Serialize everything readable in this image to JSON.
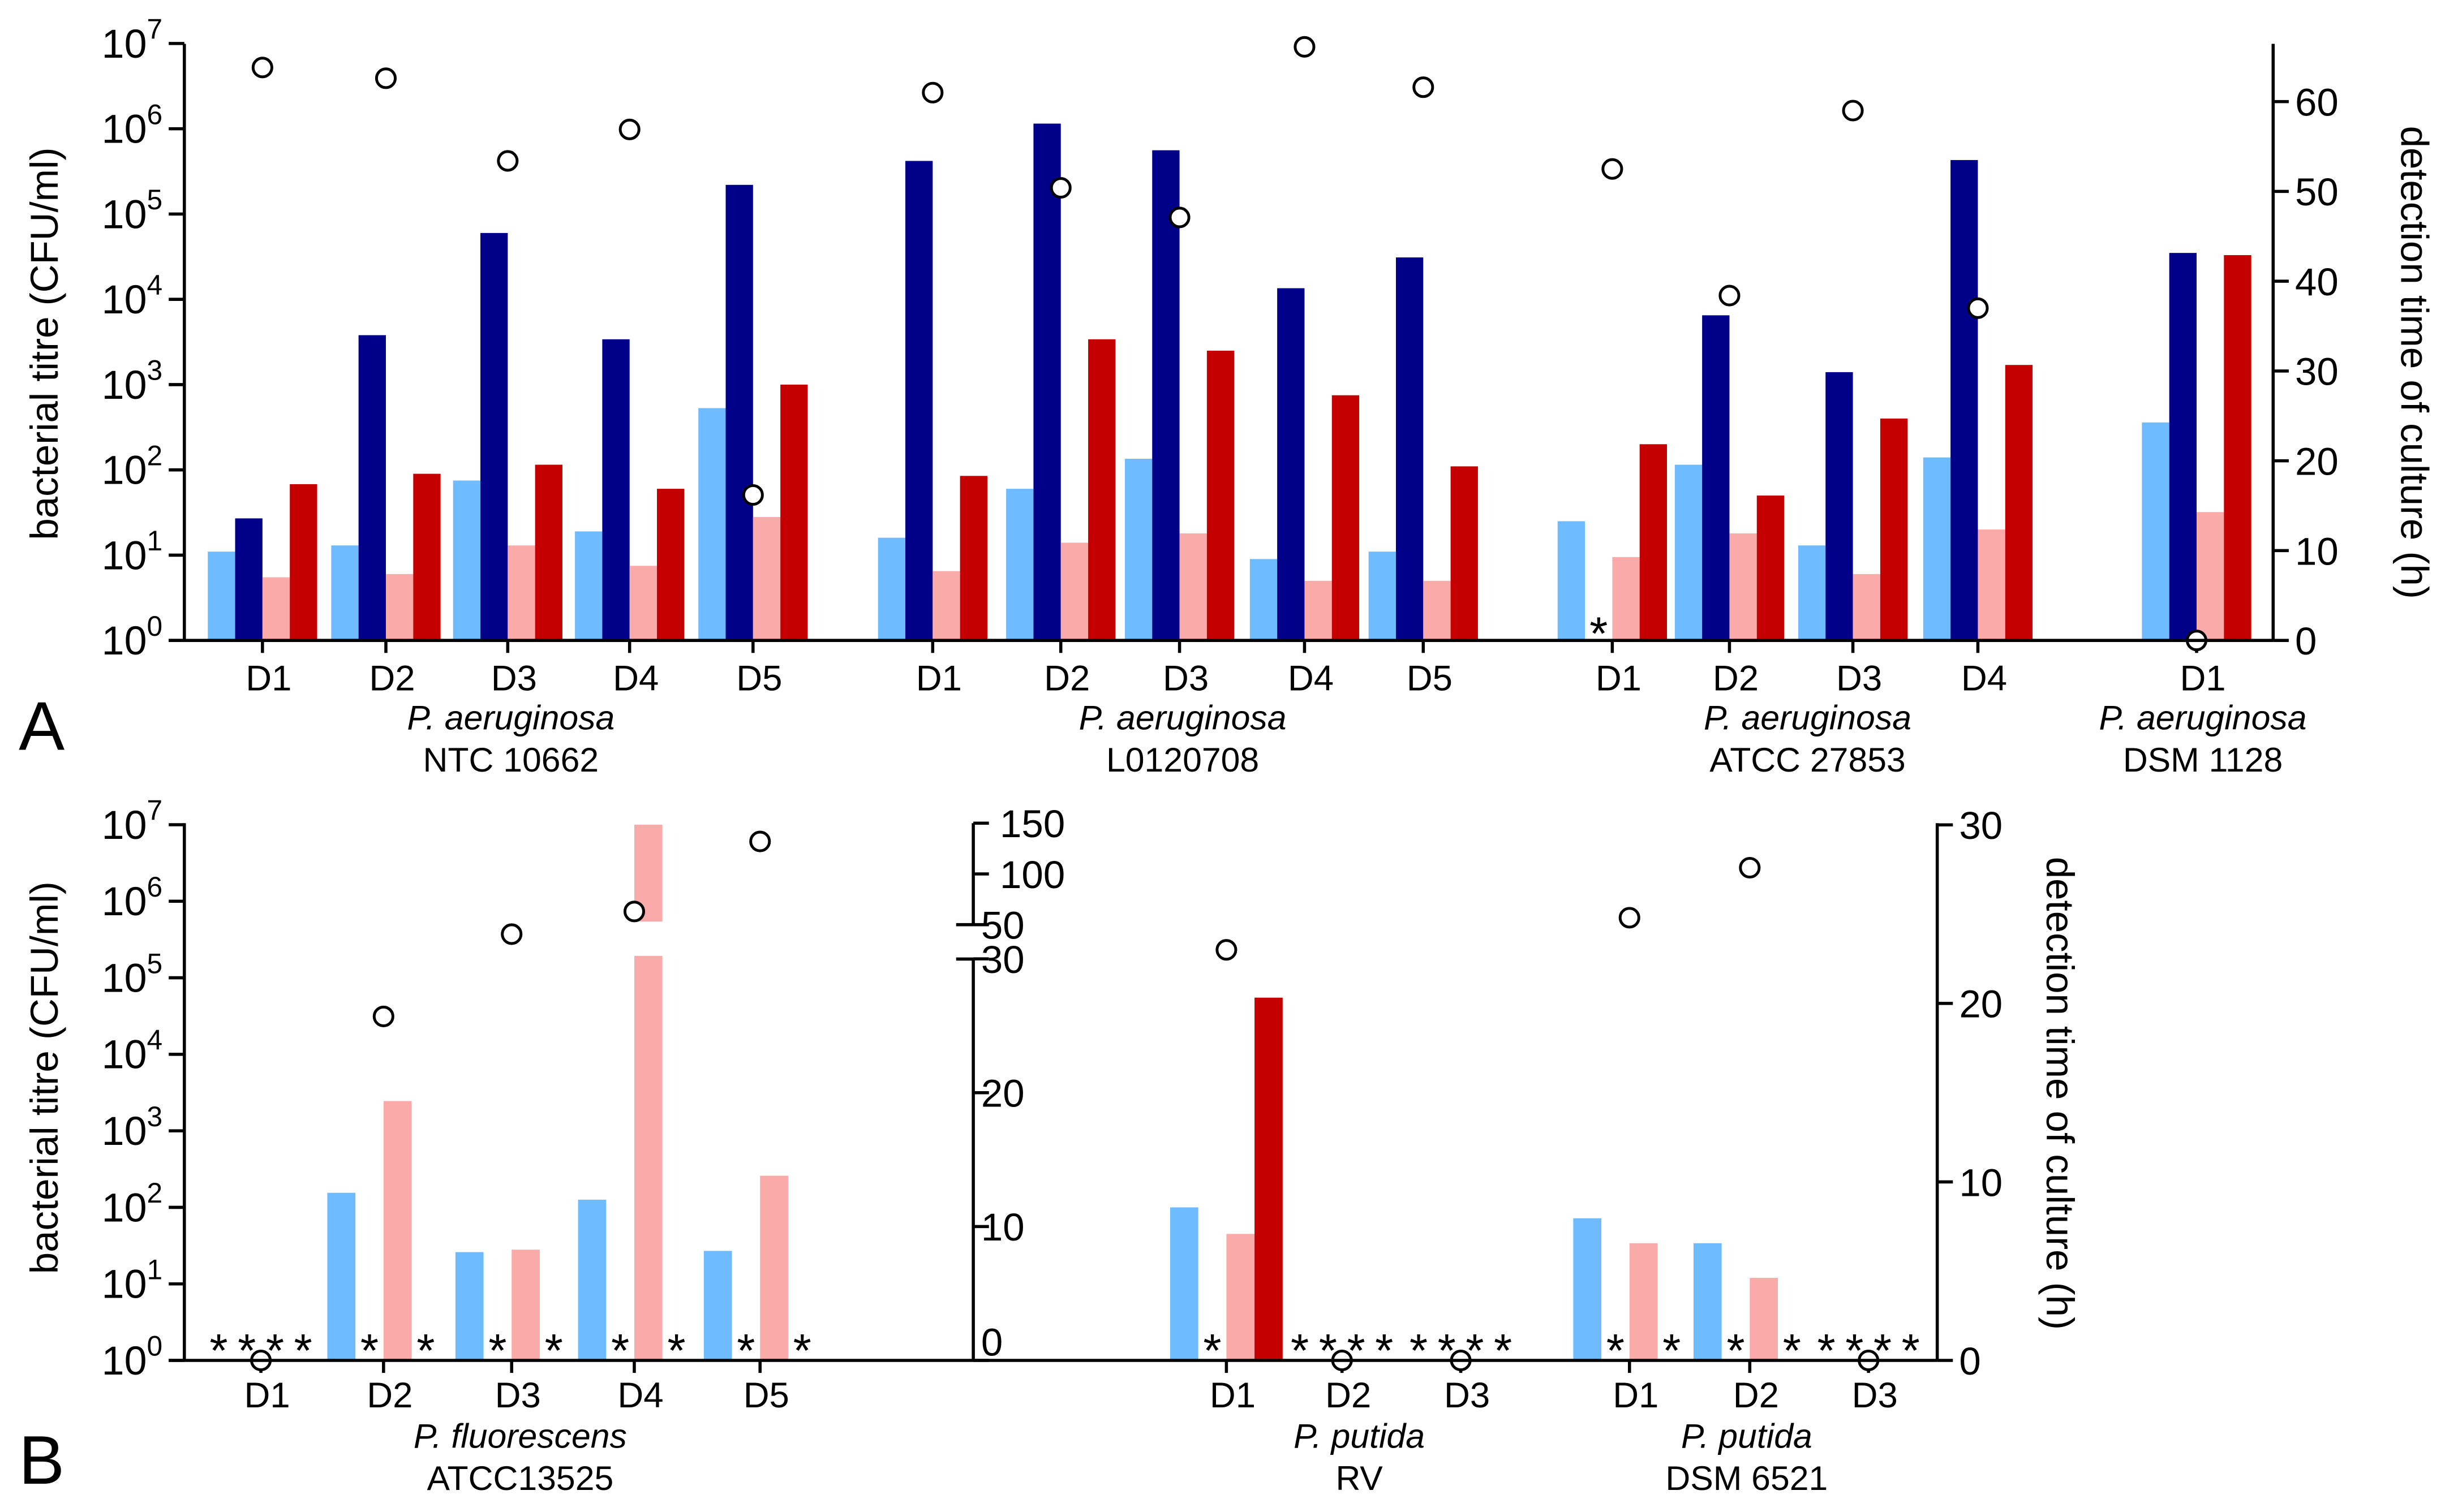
{
  "colors": {
    "light_blue": "#6ebcff",
    "dark_blue": "#000088",
    "pink": "#fbaaaa",
    "red": "#c40000"
  },
  "not_detected_marker": "*",
  "chart_data": [
    {
      "panel": "A",
      "type": "bar",
      "ylabel": "bacterial titre (CFU/ml)",
      "y2label": "detection time of culture (h)",
      "yscale": "log",
      "ylim": [
        1,
        10000000
      ],
      "yticks": [
        "10^0",
        "10^1",
        "10^2",
        "10^3",
        "10^4",
        "10^5",
        "10^6",
        "10^7"
      ],
      "y2lim": [
        0,
        66
      ],
      "y2ticks": [
        0,
        10,
        20,
        30,
        40,
        50,
        60
      ],
      "groups": [
        {
          "species": "P. aeruginosa",
          "strain": "NTC 10662",
          "time_axis": "right",
          "days": [
            {
              "label": "D1",
              "values": [
                11,
                27,
                5.5,
                68
              ],
              "detection_time": 63.8
            },
            {
              "label": "D2",
              "values": [
                13,
                3800,
                6,
                90
              ],
              "detection_time": 62.6
            },
            {
              "label": "D3",
              "values": [
                75,
                60000,
                13,
                115
              ],
              "detection_time": 53.4
            },
            {
              "label": "D4",
              "values": [
                19,
                3400,
                7.5,
                60
              ],
              "detection_time": 56.9
            },
            {
              "label": "D5",
              "values": [
                530,
                220000,
                28,
                1000
              ],
              "detection_time": 16.2
            }
          ]
        },
        {
          "species": "P. aeruginosa",
          "strain": "L0120708",
          "time_axis": "right",
          "days": [
            {
              "label": "D1",
              "values": [
                16,
                420000,
                6.5,
                85
              ],
              "detection_time": 61
            },
            {
              "label": "D2",
              "values": [
                60,
                1150000,
                14,
                3400
              ],
              "detection_time": 50.4
            },
            {
              "label": "D3",
              "values": [
                135,
                560000,
                18,
                2500
              ],
              "detection_time": 47.1
            },
            {
              "label": "D4",
              "values": [
                9,
                13500,
                5,
                750
              ],
              "detection_time": 66.1
            },
            {
              "label": "D5",
              "values": [
                11,
                31000,
                5,
                110
              ],
              "detection_time": 61.6
            }
          ]
        },
        {
          "species": "P. aeruginosa",
          "strain": "ATCC 27853",
          "time_axis": "right",
          "days": [
            {
              "label": "D1",
              "values": [
                25,
                null,
                9.5,
                200
              ],
              "detection_time": 52.5
            },
            {
              "label": "D2",
              "values": [
                115,
                6500,
                18,
                50
              ],
              "detection_time": 38.4
            },
            {
              "label": "D3",
              "values": [
                13,
                1400,
                6,
                400
              ],
              "detection_time": 59
            },
            {
              "label": "D4",
              "values": [
                140,
                430000,
                20,
                1700
              ],
              "detection_time": 37
            }
          ]
        },
        {
          "species": "P. aeruginosa",
          "strain": "DSM 1128",
          "time_axis": "right",
          "days": [
            {
              "label": "D1",
              "values": [
                360,
                35000,
                32,
                33000
              ],
              "detection_time": 0
            }
          ]
        }
      ]
    },
    {
      "panel": "B",
      "type": "bar",
      "ylabel": "bacterial titre (CFU/ml)",
      "y2label": "detection time of culture (h)",
      "yscale": "log",
      "ylim": [
        1,
        10000000
      ],
      "yticks": [
        "10^0",
        "10^1",
        "10^2",
        "10^3",
        "10^4",
        "10^5",
        "10^6",
        "10^7"
      ],
      "middle_axis": {
        "lower_lim": [
          0,
          30
        ],
        "upper_lim": [
          50,
          150
        ],
        "ticks": [
          0,
          10,
          20,
          30,
          50,
          100,
          150
        ],
        "broken": true
      },
      "y2lim": [
        0,
        30
      ],
      "y2ticks": [
        0,
        10,
        20,
        30
      ],
      "groups": [
        {
          "species": "P. fluorescens",
          "strain": "ATCC13525",
          "time_axis": "middle",
          "days": [
            {
              "label": "D1",
              "values": [
                null,
                null,
                null,
                null
              ],
              "detection_time": 0
            },
            {
              "label": "D2",
              "values": [
                155,
                null,
                2450,
                null
              ],
              "detection_time": 25.7
            },
            {
              "label": "D3",
              "values": [
                26,
                null,
                28,
                null
              ],
              "detection_time": 44.5
            },
            {
              "label": "D4",
              "values": [
                126,
                null,
                10000000,
                null
              ],
              "detection_time": 63,
              "bar_break": true
            },
            {
              "label": "D5",
              "values": [
                27,
                null,
                259,
                null
              ],
              "detection_time": 132
            }
          ]
        },
        {
          "species": "P. putida",
          "strain": "RV",
          "time_axis": "right",
          "days": [
            {
              "label": "D1",
              "values": [
                100,
                null,
                45,
                55000
              ],
              "detection_time": 23
            },
            {
              "label": "D2",
              "values": [
                null,
                null,
                null,
                null
              ],
              "detection_time": 0
            },
            {
              "label": "D3",
              "values": [
                null,
                null,
                null,
                null
              ],
              "detection_time": 0
            }
          ]
        },
        {
          "species": "P. putida",
          "strain": "DSM 6521",
          "time_axis": "right",
          "days": [
            {
              "label": "D1",
              "values": [
                72,
                null,
                34,
                null
              ],
              "detection_time": 24.8
            },
            {
              "label": "D2",
              "values": [
                34,
                null,
                12,
                null
              ],
              "detection_time": 27.6
            },
            {
              "label": "D3",
              "values": [
                null,
                null,
                null,
                null
              ],
              "detection_time": 0
            }
          ]
        }
      ]
    }
  ]
}
